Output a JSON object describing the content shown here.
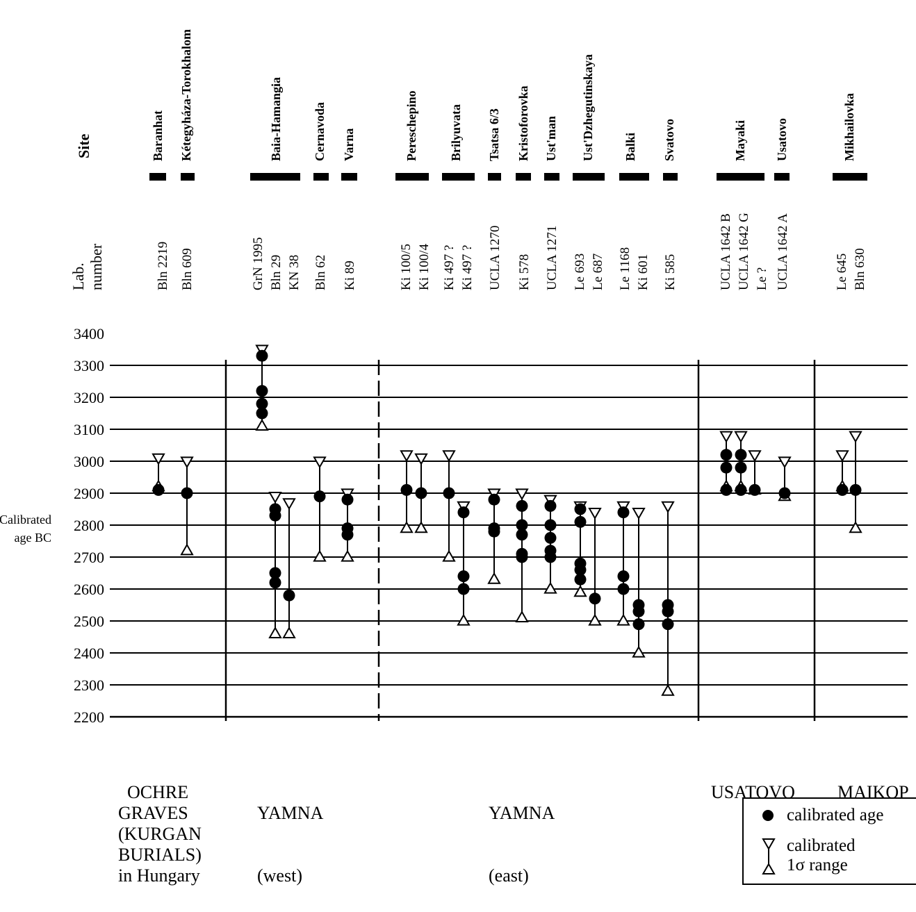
{
  "chart_data": {
    "type": "scatter",
    "title": "",
    "ylabel": "Calibrated age BC",
    "ylim": [
      2200,
      3400
    ],
    "yticks": [
      3400,
      3300,
      3200,
      3100,
      3000,
      2900,
      2800,
      2700,
      2600,
      2500,
      2400,
      2300,
      2200
    ],
    "grid": true,
    "header_labels": {
      "site": "Site",
      "lab": "Lab. number"
    },
    "sites": [
      {
        "name": "Baranhat",
        "labs": [
          "Bln 2219"
        ]
      },
      {
        "name": "Kétegyháza-Torokhalom",
        "labs": [
          "Bln 609"
        ]
      },
      {
        "name": "Baia-Hamangia",
        "labs": [
          "GrN 1995",
          "Bln 29",
          "KN 38"
        ]
      },
      {
        "name": "Cernavoda",
        "labs": [
          "Bln 62"
        ]
      },
      {
        "name": "Varna",
        "labs": [
          "Ki 89"
        ]
      },
      {
        "name": "Pereschepino",
        "labs": [
          "Ki 100/5",
          "Ki 100/4"
        ]
      },
      {
        "name": "Brilyuvata",
        "labs": [
          "Ki 497 ?",
          "Ki 497 ?"
        ]
      },
      {
        "name": "Tsatsa 6/3",
        "labs": [
          "UCLA 1270"
        ]
      },
      {
        "name": "Kristoforovka",
        "labs": [
          "Ki 578"
        ]
      },
      {
        "name": "Ust'man",
        "labs": [
          "UCLA 1271"
        ]
      },
      {
        "name": "Ust'Dzhegutinskaya",
        "labs": [
          "Le 693",
          "Le 687"
        ]
      },
      {
        "name": "Balki",
        "labs": [
          "Le 1168",
          "Ki 601"
        ]
      },
      {
        "name": "Svatovo",
        "labs": [
          "Ki 585"
        ]
      },
      {
        "name": "Mayaki",
        "labs": [
          "UCLA 1642 B",
          "UCLA 1642 G",
          "Le ?"
        ]
      },
      {
        "name": "Usatovo",
        "labs": [
          "UCLA 1642 A"
        ]
      },
      {
        "name": "Mikhailovka",
        "labs": [
          "Le 645",
          "Bln 630"
        ]
      }
    ],
    "series": [
      {
        "site": "Baranhat",
        "lab": "Bln 2219",
        "range": [
          2910,
          3020
        ],
        "ages": [
          2910
        ]
      },
      {
        "site": "Kétegyháza-Torokhalom",
        "lab": "Bln 609",
        "range": [
          2710,
          3010
        ],
        "ages": [
          2900
        ]
      },
      {
        "site": "Baia-Hamangia",
        "lab": "GrN 1995",
        "range": [
          3100,
          3360
        ],
        "ages": [
          3330,
          3220,
          3180,
          3150
        ]
      },
      {
        "site": "Baia-Hamangia",
        "lab": "Bln 29",
        "range": [
          2450,
          2900
        ],
        "ages": [
          2850,
          2830,
          2650,
          2620
        ]
      },
      {
        "site": "Baia-Hamangia",
        "lab": "KN 38",
        "range": [
          2450,
          2880
        ],
        "ages": [
          2580
        ]
      },
      {
        "site": "Cernavoda",
        "lab": "Bln 62",
        "range": [
          2690,
          3010
        ],
        "ages": [
          2890
        ]
      },
      {
        "site": "Varna",
        "lab": "Ki 89",
        "range": [
          2690,
          2910
        ],
        "ages": [
          2880,
          2790,
          2770
        ]
      },
      {
        "site": "Pereschepino",
        "lab": "Ki 100/5",
        "range": [
          2780,
          3030
        ],
        "ages": [
          2910
        ]
      },
      {
        "site": "Pereschepino",
        "lab": "Ki 100/4",
        "range": [
          2780,
          3020
        ],
        "ages": [
          2900
        ]
      },
      {
        "site": "Brilyuvata",
        "lab": "Ki 497 ?",
        "range": [
          2690,
          3030
        ],
        "ages": [
          2900
        ]
      },
      {
        "site": "Brilyuvata",
        "lab": "Ki 497 ?",
        "range": [
          2490,
          2870
        ],
        "ages": [
          2840,
          2640,
          2600
        ]
      },
      {
        "site": "Tsatsa 6/3",
        "lab": "UCLA 1270",
        "range": [
          2620,
          2910
        ],
        "ages": [
          2880,
          2790,
          2780
        ]
      },
      {
        "site": "Kristoforovka",
        "lab": "Ki 578",
        "range": [
          2500,
          2910
        ],
        "ages": [
          2860,
          2800,
          2770,
          2710,
          2700
        ]
      },
      {
        "site": "Ust'man",
        "lab": "UCLA 1271",
        "range": [
          2590,
          2890
        ],
        "ages": [
          2860,
          2800,
          2760,
          2720,
          2700
        ]
      },
      {
        "site": "Ust'Dzhegutinskaya",
        "lab": "Le 693",
        "range": [
          2580,
          2870
        ],
        "ages": [
          2850,
          2810,
          2680,
          2660,
          2630
        ]
      },
      {
        "site": "Ust'Dzhegutinskaya",
        "lab": "Le 687",
        "range": [
          2490,
          2850
        ],
        "ages": [
          2570
        ]
      },
      {
        "site": "Balki",
        "lab": "Le 1168",
        "range": [
          2490,
          2870
        ],
        "ages": [
          2840,
          2640,
          2600
        ]
      },
      {
        "site": "Balki",
        "lab": "Ki 601",
        "range": [
          2390,
          2850
        ],
        "ages": [
          2550,
          2530,
          2490
        ]
      },
      {
        "site": "Svatovo",
        "lab": "Ki 585",
        "range": [
          2270,
          2870
        ],
        "ages": [
          2550,
          2530,
          2490
        ]
      },
      {
        "site": "Mayaki",
        "lab": "UCLA 1642 B",
        "range": [
          2910,
          3090
        ],
        "ages": [
          3020,
          2980,
          2910
        ]
      },
      {
        "site": "Mayaki",
        "lab": "UCLA 1642 G",
        "range": [
          2910,
          3090
        ],
        "ages": [
          3020,
          2980,
          2910
        ]
      },
      {
        "site": "Mayaki",
        "lab": "Le ?",
        "range": [
          2900,
          3030
        ],
        "ages": [
          2910
        ]
      },
      {
        "site": "Usatovo",
        "lab": "UCLA 1642 A",
        "range": [
          2880,
          3010
        ],
        "ages": [
          2900
        ]
      },
      {
        "site": "Mikhailovka",
        "lab": "Le 645",
        "range": [
          2910,
          3030
        ],
        "ages": [
          2910
        ]
      },
      {
        "site": "Mikhailovka",
        "lab": "Bln 630",
        "range": [
          2780,
          3090
        ],
        "ages": [
          2910
        ]
      }
    ],
    "groups": [
      {
        "label": "OCHRE\nGRAVES\n(KURGAN\nBURIALS)\nin Hungary",
        "sub": ""
      },
      {
        "label": "YAMNA",
        "sub": "(west)"
      },
      {
        "label": "YAMNA",
        "sub": "(east)"
      },
      {
        "label": "USATOVO",
        "sub": ""
      },
      {
        "label": "MAIKOP",
        "sub": ""
      }
    ],
    "legend": {
      "position": "bottom-right",
      "items": [
        {
          "symbol": "dot",
          "label": "calibrated age"
        },
        {
          "symbol": "range",
          "label": "calibrated\n1σ range"
        }
      ]
    }
  }
}
